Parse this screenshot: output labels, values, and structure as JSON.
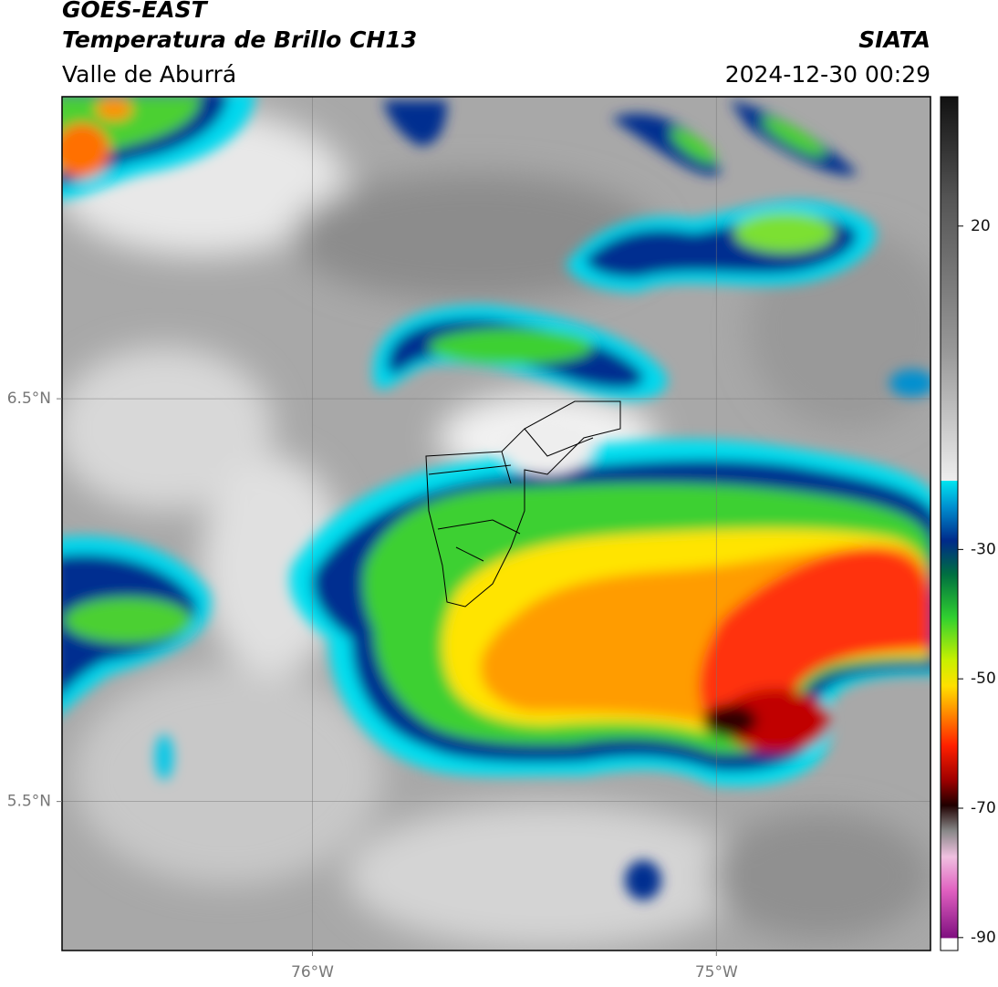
{
  "header": {
    "satellite": "GOES-EAST",
    "product": "Temperatura de Brillo CH13",
    "region": "Valle de Aburrá",
    "institution": "SIATA",
    "datetime": "2024-12-30 00:29"
  },
  "map": {
    "lonlim": [
      -76.62,
      -74.47
    ],
    "latlim": [
      5.13,
      7.25
    ],
    "lonticks": [
      {
        "value": -76,
        "label": "76°W"
      },
      {
        "value": -75,
        "label": "75°W"
      }
    ],
    "latticks": [
      {
        "value": 6.5,
        "label": "6.5°N"
      },
      {
        "value": 5.5,
        "label": "5.5°N"
      }
    ]
  },
  "colorbar": {
    "lim": [
      -92,
      40
    ],
    "ticks": [
      20,
      -30,
      -50,
      -70,
      -90
    ]
  }
}
